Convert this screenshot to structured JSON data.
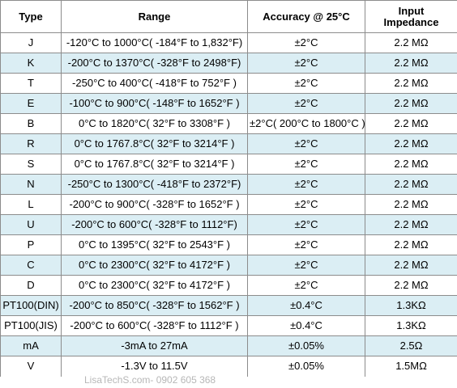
{
  "table": {
    "headers": {
      "type": "Type",
      "range": "Range",
      "accuracy": "Accuracy @ 25°C",
      "impedance_line1": "Input",
      "impedance_line2": "Impedance"
    },
    "rows": [
      {
        "type": "J",
        "range": "-120°C  to 1000°C( -184°F to 1,832°F)",
        "accuracy": "±2°C",
        "impedance": "2.2 MΩ"
      },
      {
        "type": "K",
        "range": "-200°C to 1370°C( -328°F to 2498°F)",
        "accuracy": "±2°C",
        "impedance": "2.2 MΩ"
      },
      {
        "type": "T",
        "range": "-250°C to 400°C( -418°F to  752°F )",
        "accuracy": "±2°C",
        "impedance": "2.2 MΩ"
      },
      {
        "type": "E",
        "range": "-100°C to 900°C( -148°F to 1652°F )",
        "accuracy": "±2°C",
        "impedance": "2.2 MΩ"
      },
      {
        "type": "B",
        "range": "0°C to 1820°C( 32°F to  3308°F )",
        "accuracy": "±2°C( 200°C to 1800°C )",
        "impedance": "2.2 MΩ"
      },
      {
        "type": "R",
        "range": "0°C to 1767.8°C( 32°F to 3214°F )",
        "accuracy": "±2°C",
        "impedance": "2.2 MΩ"
      },
      {
        "type": "S",
        "range": "0°C to 1767.8°C( 32°F to 3214°F )",
        "accuracy": "±2°C",
        "impedance": "2.2 MΩ"
      },
      {
        "type": "N",
        "range": "-250°C to 1300°C( -418°F to 2372°F)",
        "accuracy": "±2°C",
        "impedance": "2.2 MΩ"
      },
      {
        "type": "L",
        "range": "-200°C to 900°C( -328°F to 1652°F )",
        "accuracy": "±2°C",
        "impedance": "2.2 MΩ"
      },
      {
        "type": "U",
        "range": "-200°C to 600°C( -328°F to 1112°F)",
        "accuracy": "±2°C",
        "impedance": "2.2 MΩ"
      },
      {
        "type": "P",
        "range": "0°C to 1395°C( 32°F to 2543°F )",
        "accuracy": "±2°C",
        "impedance": "2.2 MΩ"
      },
      {
        "type": "C",
        "range": "0°C to 2300°C( 32°F to 4172°F )",
        "accuracy": "±2°C",
        "impedance": "2.2 MΩ"
      },
      {
        "type": "D",
        "range": "0°C to 2300°C( 32°F to 4172°F )",
        "accuracy": "±2°C",
        "impedance": "2.2 MΩ"
      },
      {
        "type": "PT100(DIN)",
        "range": "-200°C to 850°C( -328°F to 1562°F )",
        "accuracy": "±0.4°C",
        "impedance": "1.3KΩ"
      },
      {
        "type": "PT100(JIS)",
        "range": "-200°C to 600°C( -328°F to 1112°F )",
        "accuracy": "±0.4°C",
        "impedance": "1.3KΩ"
      },
      {
        "type": "mA",
        "range": "-3mA  to 27mA",
        "accuracy": "±0.05%",
        "impedance": "2.5Ω"
      },
      {
        "type": "V",
        "range": "-1.3V  to 11.5V",
        "accuracy": "±0.05%",
        "impedance": "1.5MΩ"
      }
    ]
  },
  "watermark": "LisaTechS.com- 0902 605 368",
  "colors": {
    "alt_row": "#dbeef4",
    "border": "#8c8c8c",
    "watermark": "#b7b7b7"
  }
}
